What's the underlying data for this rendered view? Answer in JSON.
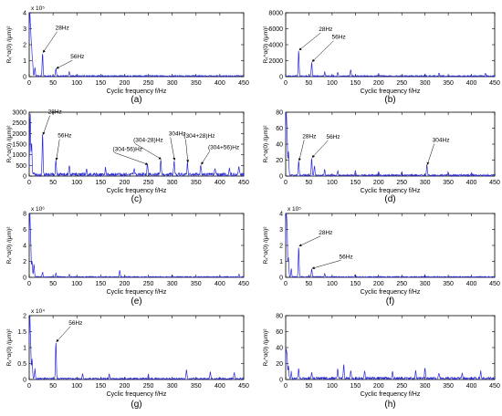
{
  "figure": {
    "panel_letters": [
      "(a)",
      "(b)",
      "(c)",
      "(d)",
      "(e)",
      "(f)",
      "(g)",
      "(h)"
    ]
  },
  "chart_data": [
    {
      "id": "a",
      "type": "line",
      "xlabel": "Cyclic frequency f/Hz",
      "ylabel": "R_x^α(0) /(μm)²",
      "xlim": [
        0,
        450
      ],
      "ylim": [
        0,
        4
      ],
      "xticks": [
        0,
        50,
        100,
        150,
        200,
        250,
        300,
        350,
        400,
        450
      ],
      "yticks": [
        0,
        1,
        2,
        3,
        4
      ],
      "y_multiplier": "x 10⁵",
      "color": "#2a2ad6",
      "peaks": [
        [
          1,
          4.0
        ],
        [
          3,
          2.6
        ],
        [
          5,
          1.6
        ],
        [
          7,
          0.9
        ],
        [
          12,
          0.55
        ],
        [
          28,
          1.45
        ],
        [
          56,
          0.45
        ],
        [
          84,
          0.25
        ]
      ],
      "noise_level": 0.08,
      "annotations": [
        {
          "text": "28Hz",
          "x": 28,
          "y": 1.45
        },
        {
          "text": "56Hz",
          "x": 56,
          "y": 0.45
        }
      ]
    },
    {
      "id": "b",
      "type": "line",
      "xlabel": "Cyclic frequency f/Hz",
      "ylabel": "R_x^α(0) /(μm)²",
      "xlim": [
        0,
        450
      ],
      "ylim": [
        0,
        8000
      ],
      "xticks": [
        0,
        50,
        100,
        150,
        200,
        250,
        300,
        350,
        400,
        450
      ],
      "yticks": [
        0,
        2000,
        4000,
        6000,
        8000
      ],
      "y_multiplier": "",
      "color": "#2a2ad6",
      "peaks": [
        [
          28,
          3200
        ],
        [
          56,
          1750
        ],
        [
          84,
          500
        ],
        [
          112,
          500
        ],
        [
          140,
          850
        ],
        [
          200,
          300
        ],
        [
          300,
          250
        ],
        [
          330,
          400
        ],
        [
          430,
          350
        ]
      ],
      "noise_level": 150,
      "annotations": [
        {
          "text": "28Hz",
          "x": 28,
          "y": 3200
        },
        {
          "text": "56Hz",
          "x": 56,
          "y": 1750
        }
      ]
    },
    {
      "id": "c",
      "type": "line",
      "xlabel": "Cyclic frequency f/Hz",
      "ylabel": "R_x^α(0) /(μm)²",
      "xlim": [
        0,
        450
      ],
      "ylim": [
        0,
        3000
      ],
      "xticks": [
        0,
        50,
        100,
        150,
        200,
        250,
        300,
        350,
        400,
        450
      ],
      "yticks": [
        0,
        500,
        1000,
        1500,
        2000,
        2500,
        3000
      ],
      "y_multiplier": "",
      "color": "#2a2ad6",
      "peaks": [
        [
          2,
          3000
        ],
        [
          5,
          1500
        ],
        [
          28,
          1900
        ],
        [
          56,
          700
        ],
        [
          84,
          400
        ],
        [
          120,
          250
        ],
        [
          160,
          300
        ],
        [
          220,
          300
        ],
        [
          248,
          500
        ],
        [
          276,
          750
        ],
        [
          304,
          700
        ],
        [
          332,
          600
        ],
        [
          360,
          500
        ],
        [
          390,
          300
        ],
        [
          420,
          350
        ],
        [
          440,
          450
        ]
      ],
      "noise_level": 150,
      "annotations": [
        {
          "text": "28Hz",
          "x": 28,
          "y": 1900
        },
        {
          "text": "56Hz",
          "x": 56,
          "y": 700
        },
        {
          "text": "(304-56)Hz",
          "x": 248,
          "y": 500
        },
        {
          "text": "(304-28)Hz",
          "x": 276,
          "y": 750
        },
        {
          "text": "304Hz",
          "x": 304,
          "y": 700
        },
        {
          "text": "(304+28)Hz",
          "x": 332,
          "y": 600
        },
        {
          "text": "(304+56)Hz",
          "x": 360,
          "y": 500
        }
      ]
    },
    {
      "id": "d",
      "type": "line",
      "xlabel": "Cyclic frequency f/Hz",
      "ylabel": "R_x^α(0) /(μm)²",
      "xlim": [
        0,
        450
      ],
      "ylim": [
        0,
        80
      ],
      "xticks": [
        0,
        50,
        100,
        150,
        200,
        250,
        300,
        350,
        400,
        450
      ],
      "yticks": [
        0,
        20,
        40,
        60,
        80
      ],
      "y_multiplier": "",
      "color": "#2a2ad6",
      "peaks": [
        [
          1,
          80
        ],
        [
          3,
          50
        ],
        [
          6,
          30
        ],
        [
          28,
          18
        ],
        [
          56,
          22
        ],
        [
          62,
          12
        ],
        [
          84,
          8
        ],
        [
          112,
          6
        ],
        [
          150,
          5
        ],
        [
          200,
          5
        ],
        [
          250,
          4
        ],
        [
          304,
          13
        ],
        [
          350,
          4
        ],
        [
          400,
          3
        ]
      ],
      "noise_level": 2,
      "annotations": [
        {
          "text": "28Hz",
          "x": 28,
          "y": 18
        },
        {
          "text": "56Hz",
          "x": 56,
          "y": 22
        },
        {
          "text": "304Hz",
          "x": 304,
          "y": 13
        }
      ]
    },
    {
      "id": "e",
      "type": "line",
      "xlabel": "Cyclic frequency f/Hz",
      "ylabel": "R_x^α(0) /(μm)²",
      "xlim": [
        0,
        450
      ],
      "ylim": [
        0,
        8
      ],
      "xticks": [
        0,
        50,
        100,
        150,
        200,
        250,
        300,
        350,
        400,
        450
      ],
      "yticks": [
        0,
        2,
        4,
        6,
        8
      ],
      "y_multiplier": "x 10⁶",
      "color": "#2a2ad6",
      "peaks": [
        [
          1,
          8
        ],
        [
          3,
          4.5
        ],
        [
          6,
          2.0
        ],
        [
          10,
          1.6
        ],
        [
          28,
          0.6
        ],
        [
          56,
          0.5
        ],
        [
          84,
          0.35
        ],
        [
          190,
          0.8
        ],
        [
          300,
          0.2
        ],
        [
          440,
          0.3
        ]
      ],
      "noise_level": 0.12,
      "annotations": []
    },
    {
      "id": "f",
      "type": "line",
      "xlabel": "Cyclic frequency f/Hz",
      "ylabel": "R_x^α(0) /(μm)²",
      "xlim": [
        0,
        450
      ],
      "ylim": [
        0,
        4
      ],
      "xticks": [
        0,
        50,
        100,
        150,
        200,
        250,
        300,
        350,
        400,
        450
      ],
      "yticks": [
        0,
        1,
        2,
        3,
        4
      ],
      "y_multiplier": "x 10⁵",
      "color": "#2a2ad6",
      "peaks": [
        [
          1,
          4.0
        ],
        [
          3,
          3.0
        ],
        [
          6,
          1.2
        ],
        [
          12,
          0.5
        ],
        [
          28,
          1.9
        ],
        [
          56,
          0.5
        ],
        [
          84,
          0.2
        ],
        [
          150,
          0.15
        ],
        [
          300,
          0.1
        ]
      ],
      "noise_level": 0.06,
      "annotations": [
        {
          "text": "28Hz",
          "x": 28,
          "y": 1.9
        },
        {
          "text": "56Hz",
          "x": 56,
          "y": 0.5
        }
      ]
    },
    {
      "id": "g",
      "type": "line",
      "xlabel": "Cyclic frequency f/Hz",
      "ylabel": "R_x^α(0) /(μm)²",
      "xlim": [
        0,
        450
      ],
      "ylim": [
        0,
        2
      ],
      "xticks": [
        0,
        50,
        100,
        150,
        200,
        250,
        300,
        350,
        400,
        450
      ],
      "yticks": [
        0,
        0.5,
        1,
        1.5,
        2
      ],
      "y_multiplier": "x 10⁴",
      "color": "#2a2ad6",
      "peaks": [
        [
          1,
          2.0
        ],
        [
          3,
          1.0
        ],
        [
          6,
          0.6
        ],
        [
          12,
          0.3
        ],
        [
          56,
          1.15
        ],
        [
          112,
          0.15
        ],
        [
          168,
          0.15
        ],
        [
          250,
          0.12
        ],
        [
          330,
          0.3
        ],
        [
          380,
          0.2
        ],
        [
          430,
          0.2
        ]
      ],
      "noise_level": 0.05,
      "annotations": [
        {
          "text": "56Hz",
          "x": 56,
          "y": 1.15
        }
      ]
    },
    {
      "id": "h",
      "type": "line",
      "xlabel": "Cyclic frequency f/Hz",
      "ylabel": "R_x^α(0) /(μm)²",
      "xlim": [
        0,
        450
      ],
      "ylim": [
        0,
        80
      ],
      "xticks": [
        0,
        50,
        100,
        150,
        200,
        250,
        300,
        350,
        400,
        450
      ],
      "yticks": [
        0,
        20,
        40,
        60,
        80
      ],
      "y_multiplier": "",
      "color": "#2a2ad6",
      "peaks": [
        [
          1,
          35
        ],
        [
          3,
          28
        ],
        [
          6,
          15
        ],
        [
          12,
          8
        ],
        [
          28,
          12
        ],
        [
          56,
          8
        ],
        [
          112,
          12
        ],
        [
          125,
          18
        ],
        [
          140,
          10
        ],
        [
          170,
          10
        ],
        [
          230,
          8
        ],
        [
          280,
          10
        ],
        [
          300,
          14
        ],
        [
          330,
          7
        ],
        [
          380,
          8
        ],
        [
          420,
          9
        ]
      ],
      "noise_level": 3,
      "annotations": []
    }
  ]
}
